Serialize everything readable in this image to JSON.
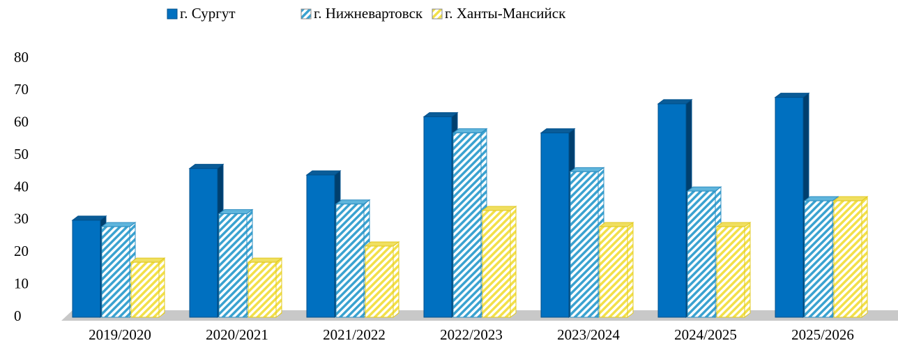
{
  "chart_data": {
    "type": "bar3d",
    "categories": [
      "2019/2020",
      "2020/2021",
      "2021/2022",
      "2022/2023",
      "2023/2024",
      "2024/2025",
      "2025/2026"
    ],
    "series": [
      {
        "name": "г. Сургут",
        "color": "#0070c0",
        "values": [
          30,
          46,
          44,
          62,
          57,
          66,
          68
        ]
      },
      {
        "name": "г. Нижневартовск",
        "color": "#9dd6ef",
        "values": [
          28,
          32,
          35,
          57,
          45,
          39,
          36
        ]
      },
      {
        "name": "г. Ханты-Мансийск",
        "color": "#fff59d",
        "values": [
          17,
          17,
          22,
          33,
          28,
          28,
          36
        ]
      }
    ],
    "ylim": [
      0,
      80
    ],
    "yticks": [
      0,
      10,
      20,
      30,
      40,
      50,
      60,
      70,
      80
    ],
    "legend": "top"
  }
}
